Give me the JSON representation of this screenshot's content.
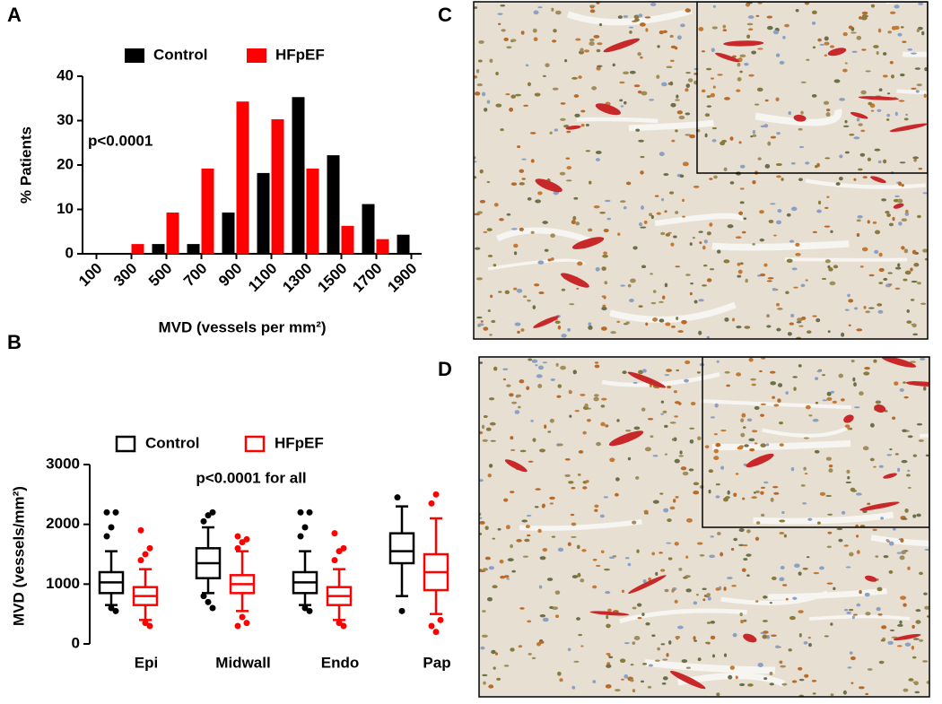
{
  "chart_data": [
    {
      "type": "bar",
      "panel": "A",
      "xlabel": "MVD (vessels per mm²)",
      "ylabel": "% Patients",
      "annotation": "p<0.0001",
      "categories": [
        "100",
        "300",
        "500",
        "700",
        "900",
        "1100",
        "1300",
        "1500",
        "1700",
        "1900"
      ],
      "series": [
        {
          "name": "Control",
          "color": "#000000",
          "values": [
            0,
            0,
            2.2,
            2.2,
            9.3,
            18.2,
            35.3,
            22.2,
            11.2,
            4.3
          ]
        },
        {
          "name": "HFpEF",
          "color": "#ff0000",
          "values": [
            0,
            2.2,
            9.3,
            19.2,
            34.3,
            30.3,
            19.2,
            6.3,
            3.3,
            0
          ]
        }
      ],
      "ylim": [
        0,
        40
      ],
      "yticks": [
        0,
        10,
        20,
        30,
        40
      ]
    },
    {
      "type": "box",
      "panel": "B",
      "ylabel": "MVD (vessels/mm²)",
      "annotation": "p<0.0001 for all",
      "categories": [
        "Epi",
        "Midwall",
        "Endo",
        "Pap"
      ],
      "series": [
        {
          "name": "Control",
          "color": "#000000",
          "boxes": [
            {
              "min": 650,
              "q1": 850,
              "median": 1030,
              "q3": 1200,
              "max": 1550,
              "outliers": [
                1800,
                1950,
                2200,
                2200,
                600,
                550
              ]
            },
            {
              "min": 850,
              "q1": 1100,
              "median": 1350,
              "q3": 1600,
              "max": 1950,
              "outliers": [
                2050,
                2150,
                2200,
                800,
                700,
                600
              ]
            },
            {
              "min": 650,
              "q1": 850,
              "median": 1030,
              "q3": 1200,
              "max": 1550,
              "outliers": [
                1800,
                1950,
                2200,
                2200,
                600,
                550
              ]
            },
            {
              "min": 800,
              "q1": 1350,
              "median": 1550,
              "q3": 1850,
              "max": 2300,
              "outliers": [
                2450,
                550
              ]
            }
          ]
        },
        {
          "name": "HFpEF",
          "color": "#ff0000",
          "boxes": [
            {
              "min": 400,
              "q1": 650,
              "median": 800,
              "q3": 950,
              "max": 1250,
              "outliers": [
                1400,
                1500,
                1600,
                1900,
                350,
                300
              ]
            },
            {
              "min": 550,
              "q1": 850,
              "median": 1000,
              "q3": 1150,
              "max": 1550,
              "outliers": [
                1600,
                1700,
                1750,
                1800,
                450,
                350,
                300
              ]
            },
            {
              "min": 400,
              "q1": 650,
              "median": 800,
              "q3": 950,
              "max": 1250,
              "outliers": [
                1400,
                1550,
                1600,
                1850,
                350,
                300
              ]
            },
            {
              "min": 500,
              "q1": 900,
              "median": 1200,
              "q3": 1500,
              "max": 2100,
              "outliers": [
                2350,
                2500,
                400,
                300,
                200
              ]
            }
          ]
        }
      ],
      "ylim": [
        0,
        3000
      ],
      "yticks": [
        0,
        1000,
        2000,
        3000
      ]
    },
    {
      "type": "image",
      "panel": "C"
    },
    {
      "type": "image",
      "panel": "D"
    }
  ]
}
